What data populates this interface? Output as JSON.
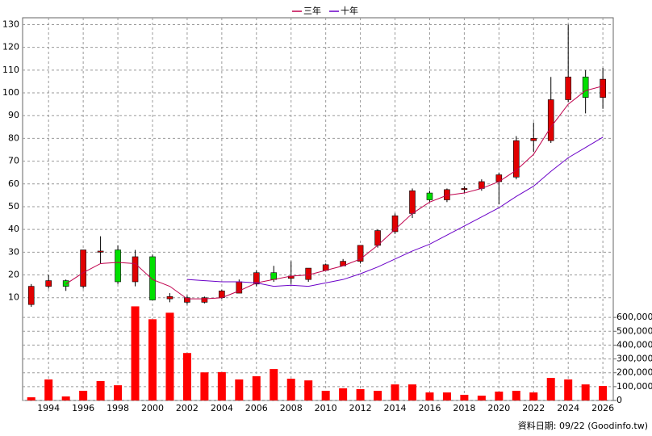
{
  "chart_data": {
    "type": "candlestick",
    "x": [
      1993,
      1994,
      1995,
      1996,
      1997,
      1998,
      1999,
      2000,
      2001,
      2002,
      2003,
      2004,
      2005,
      2006,
      2007,
      2008,
      2009,
      2010,
      2011,
      2012,
      2013,
      2014,
      2015,
      2016,
      2017,
      2018,
      2019,
      2020,
      2021,
      2022,
      2023,
      2024,
      2025,
      2026
    ],
    "open": [
      7,
      15,
      17.5,
      15,
      30,
      31,
      17,
      28,
      9.5,
      8,
      8,
      10,
      12,
      16,
      21,
      18.5,
      18,
      22,
      24,
      26,
      33,
      39,
      47,
      56,
      53,
      57.5,
      58,
      61,
      63,
      79,
      79,
      97,
      107,
      98
    ],
    "high": [
      16,
      20,
      18,
      31,
      37,
      33,
      31,
      29,
      12,
      11,
      10.5,
      13.5,
      18,
      22,
      24,
      26,
      23,
      25,
      27,
      33,
      40,
      47,
      58,
      57,
      58,
      59,
      62,
      65,
      81,
      87,
      107,
      130,
      110,
      111
    ],
    "low": [
      6,
      14,
      13,
      14,
      25,
      16,
      15,
      9,
      8,
      7,
      7.5,
      9.5,
      12,
      15,
      17,
      16,
      17,
      22,
      24,
      25,
      32,
      38,
      45,
      52,
      52,
      56,
      57,
      51,
      62,
      74,
      78,
      96,
      91,
      93
    ],
    "close": [
      15,
      17.5,
      15,
      31,
      30.5,
      17,
      28,
      9,
      10.5,
      10,
      10,
      13,
      17,
      21,
      18,
      19.5,
      23,
      24.5,
      26,
      33,
      39.5,
      46,
      57,
      53,
      57.5,
      58,
      61,
      64,
      79,
      80,
      97,
      107,
      98,
      106
    ],
    "up_color": "#e00000",
    "down_color": "#00e000",
    "series": [
      {
        "name": "三年",
        "color": "#c0004c",
        "values": [
          null,
          null,
          16,
          21,
          25,
          25.5,
          25,
          18,
          15,
          9.5,
          9.5,
          10,
          13,
          16.5,
          18,
          19.5,
          20,
          22,
          24,
          27,
          33,
          40,
          47,
          52,
          55,
          56,
          58,
          61,
          66,
          73,
          85,
          95,
          101,
          103
        ]
      },
      {
        "name": "十年",
        "color": "#6a00c8",
        "values": [
          null,
          null,
          null,
          null,
          null,
          null,
          null,
          null,
          null,
          18,
          17.5,
          17,
          17,
          16.5,
          15,
          15.5,
          15,
          16.5,
          18,
          20.5,
          23.5,
          27,
          30.5,
          33.5,
          37.5,
          41.5,
          45.5,
          49.5,
          54.5,
          59,
          65.5,
          71.5,
          76,
          80.5
        ]
      }
    ],
    "volume": [
      23000,
      152000,
      29000,
      70000,
      140000,
      110000,
      680000,
      587000,
      634000,
      343000,
      203000,
      205000,
      152000,
      175000,
      227000,
      157000,
      145000,
      70000,
      88000,
      82000,
      70000,
      116000,
      116000,
      58000,
      58000,
      41000,
      35000,
      64000,
      70000,
      58000,
      163000,
      152000,
      116000,
      105000
    ],
    "volume_color": "#ff0000",
    "xlim": [
      1992.5,
      2026.6
    ],
    "xticks": [
      1994,
      1996,
      1998,
      2000,
      2002,
      2004,
      2006,
      2008,
      2010,
      2012,
      2014,
      2016,
      2018,
      2020,
      2022,
      2024,
      2026
    ],
    "ylim": [
      6,
      133
    ],
    "yticks": [
      10,
      20,
      30,
      40,
      50,
      60,
      70,
      80,
      90,
      100,
      110,
      120,
      130
    ],
    "y2lim": [
      0,
      700000
    ],
    "y2ticks": [
      0,
      {
        "value": 100000,
        "label": "100,000"
      },
      {
        "value": 200000,
        "label": "200,000"
      },
      {
        "value": 300000,
        "label": "300,000"
      },
      {
        "value": 400000,
        "label": "400,000"
      },
      {
        "value": 500000,
        "label": "500,000"
      },
      {
        "value": 600000,
        "label": "600,000"
      }
    ],
    "grid": true,
    "legend": "top",
    "footer": "資料日期: 09/22 (Goodinfo.tw)"
  }
}
